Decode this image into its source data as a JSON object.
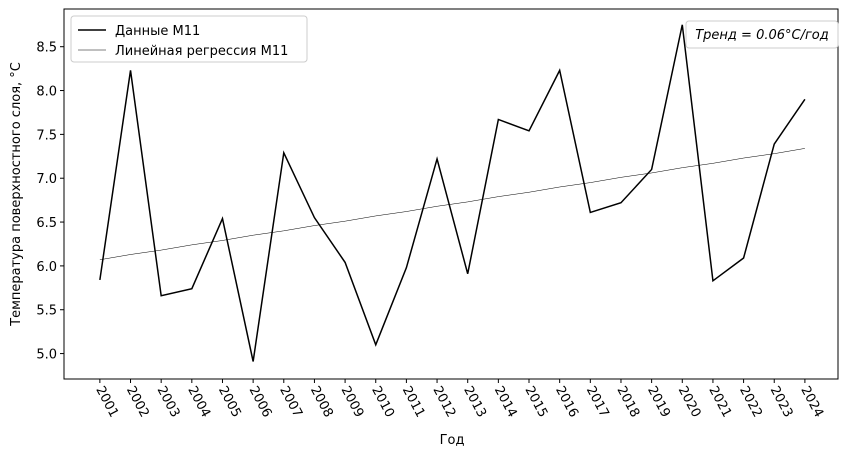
{
  "chart_data": {
    "type": "line",
    "x": [
      2001,
      2002,
      2003,
      2004,
      2005,
      2006,
      2007,
      2008,
      2009,
      2010,
      2011,
      2012,
      2013,
      2014,
      2015,
      2016,
      2017,
      2018,
      2019,
      2020,
      2021,
      2022,
      2023,
      2024
    ],
    "series": [
      {
        "name": "Данные M11",
        "color": "#000000",
        "width": 1.5,
        "values": [
          5.84,
          8.23,
          5.66,
          5.74,
          6.54,
          4.91,
          7.29,
          6.55,
          6.04,
          5.1,
          5.98,
          7.22,
          5.91,
          7.67,
          7.54,
          8.23,
          6.61,
          6.72,
          7.1,
          8.75,
          5.83,
          6.09,
          7.39,
          7.9
        ]
      },
      {
        "name": "Линейная регрессия M11",
        "color": "#000000",
        "width": 0.5,
        "values": [
          6.07,
          6.13,
          6.18,
          6.24,
          6.29,
          6.35,
          6.4,
          6.46,
          6.51,
          6.57,
          6.62,
          6.68,
          6.73,
          6.79,
          6.84,
          6.9,
          6.95,
          7.01,
          7.06,
          7.12,
          7.17,
          7.23,
          7.28,
          7.34
        ]
      }
    ],
    "xlim": [
      1999.83,
      2025.08
    ],
    "xticks": [
      2001,
      2002,
      2003,
      2004,
      2005,
      2006,
      2007,
      2008,
      2009,
      2010,
      2011,
      2012,
      2013,
      2014,
      2015,
      2016,
      2017,
      2018,
      2019,
      2020,
      2021,
      2022,
      2023,
      2024
    ],
    "ylim": [
      4.71,
      8.93
    ],
    "yticks": [
      {
        "value": 5,
        "label": "5.0"
      },
      5.5,
      {
        "value": 6,
        "label": "6.0"
      },
      6.5,
      {
        "value": 7,
        "label": "7.0"
      },
      7.5,
      {
        "value": 8,
        "label": "8.0"
      },
      8.5
    ],
    "xlabel": "Год",
    "ylabel": "Температура поверхностного слоя, °C",
    "annotation": "Тренд = 0.06°C/год",
    "legend": "upper left",
    "grid": false
  }
}
